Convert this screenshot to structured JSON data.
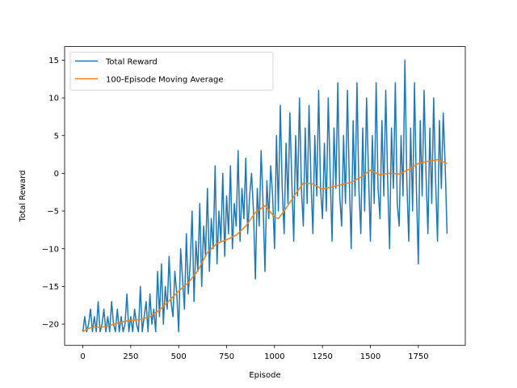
{
  "chart_data": {
    "type": "line",
    "xlabel": "Episode",
    "ylabel": "Total Reward",
    "xlim": [
      -95,
      1995
    ],
    "ylim": [
      -22.8,
      16.8
    ],
    "xticks": [
      0,
      250,
      500,
      750,
      1000,
      1250,
      1500,
      1750
    ],
    "xtick_labels": [
      "0",
      "250",
      "500",
      "750",
      "1000",
      "1250",
      "1500",
      "1750"
    ],
    "yticks": [
      -20,
      -15,
      -10,
      -5,
      0,
      5,
      10,
      15
    ],
    "ytick_labels": [
      "−20",
      "−15",
      "−10",
      "−5",
      "0",
      "5",
      "10",
      "15"
    ],
    "grid": false,
    "legend_position": "upper-left",
    "series": [
      {
        "name": "Total Reward",
        "color": "#1f77b4",
        "x": [
          0,
          10,
          20,
          30,
          40,
          50,
          60,
          70,
          80,
          90,
          100,
          110,
          120,
          130,
          140,
          150,
          160,
          170,
          180,
          190,
          200,
          210,
          220,
          230,
          240,
          250,
          260,
          270,
          280,
          290,
          300,
          310,
          320,
          330,
          340,
          350,
          360,
          370,
          380,
          390,
          400,
          410,
          420,
          430,
          440,
          450,
          460,
          470,
          480,
          490,
          500,
          510,
          520,
          530,
          540,
          550,
          560,
          570,
          580,
          590,
          600,
          610,
          620,
          630,
          640,
          650,
          660,
          670,
          680,
          690,
          700,
          710,
          720,
          730,
          740,
          750,
          760,
          770,
          780,
          790,
          800,
          810,
          820,
          830,
          840,
          850,
          860,
          870,
          880,
          890,
          900,
          910,
          920,
          930,
          940,
          950,
          960,
          970,
          980,
          990,
          1000,
          1010,
          1020,
          1030,
          1040,
          1050,
          1060,
          1070,
          1080,
          1090,
          1100,
          1110,
          1120,
          1130,
          1140,
          1150,
          1160,
          1170,
          1180,
          1190,
          1200,
          1210,
          1220,
          1230,
          1240,
          1250,
          1260,
          1270,
          1280,
          1290,
          1300,
          1310,
          1320,
          1330,
          1340,
          1350,
          1360,
          1370,
          1380,
          1390,
          1400,
          1410,
          1420,
          1430,
          1440,
          1450,
          1460,
          1470,
          1480,
          1490,
          1500,
          1510,
          1520,
          1530,
          1540,
          1550,
          1560,
          1570,
          1580,
          1590,
          1600,
          1610,
          1620,
          1630,
          1640,
          1650,
          1660,
          1670,
          1680,
          1690,
          1700,
          1710,
          1720,
          1730,
          1740,
          1750,
          1760,
          1770,
          1780,
          1790,
          1800,
          1810,
          1820,
          1830,
          1840,
          1850,
          1860,
          1870,
          1880,
          1890,
          1900
        ],
        "y": [
          -21,
          -19,
          -21,
          -20,
          -18,
          -21,
          -19,
          -21,
          -17,
          -21,
          -20,
          -18,
          -21,
          -19,
          -21,
          -17,
          -20,
          -21,
          -18,
          -21,
          -19,
          -21,
          -20,
          -16,
          -21,
          -19,
          -21,
          -18,
          -20,
          -21,
          -15,
          -21,
          -19,
          -17,
          -21,
          -16,
          -20,
          -18,
          -21,
          -13,
          -19,
          -12,
          -20,
          -15,
          -18,
          -11,
          -17,
          -19,
          -13,
          -16,
          -21,
          -10,
          -14,
          -18,
          -8,
          -16,
          -12,
          -5,
          -17,
          -9,
          -13,
          -4,
          -15,
          -7,
          -11,
          -2,
          -13,
          -6,
          -10,
          1,
          -12,
          -5,
          -9,
          0,
          -11,
          -3,
          -8,
          1,
          -10,
          -4,
          -7,
          3,
          -9,
          -2,
          -6,
          2,
          -8,
          -3,
          0,
          -5,
          -14,
          -2,
          -7,
          3,
          -4,
          -13,
          -1,
          -6,
          1,
          -3,
          -10,
          5,
          -5,
          9,
          -2,
          -8,
          4,
          -4,
          8,
          -1,
          -9,
          5,
          -3,
          10,
          -2,
          -7,
          6,
          -4,
          9,
          -1,
          -8,
          5,
          -3,
          11,
          -2,
          -6,
          4,
          -5,
          10,
          0,
          -9,
          6,
          -2,
          12,
          -3,
          -7,
          5,
          -4,
          11,
          -1,
          -10,
          7,
          -3,
          12,
          -2,
          -8,
          6,
          -5,
          10,
          0,
          -9,
          5,
          -4,
          12,
          -2,
          -6,
          7,
          -3,
          11,
          -1,
          -10,
          6,
          -2,
          12,
          -4,
          -7,
          5,
          -3,
          15,
          -1,
          -9,
          6,
          -5,
          12,
          -2,
          -12,
          7,
          -3,
          11,
          0,
          -8,
          6,
          -4,
          10,
          -1,
          -9,
          7,
          -2,
          8,
          1,
          -8
        ]
      },
      {
        "name": "100-Episode Moving Average",
        "color": "#ff7f0e",
        "x": [
          0,
          25,
          50,
          100,
          150,
          200,
          250,
          300,
          350,
          400,
          450,
          500,
          550,
          600,
          650,
          700,
          750,
          800,
          850,
          900,
          950,
          1000,
          1020,
          1050,
          1100,
          1150,
          1200,
          1250,
          1300,
          1350,
          1400,
          1450,
          1500,
          1550,
          1600,
          1650,
          1700,
          1750,
          1800,
          1850,
          1900
        ],
        "y": [
          -21,
          -20.6,
          -20.4,
          -20.4,
          -20.1,
          -19.7,
          -19.5,
          -19.4,
          -19.0,
          -18.1,
          -16.9,
          -15.6,
          -14.5,
          -12.9,
          -10.5,
          -9.3,
          -8.8,
          -8.2,
          -7.0,
          -5.2,
          -4.3,
          -5.8,
          -6.0,
          -5.0,
          -3.1,
          -1.3,
          -1.4,
          -2.1,
          -1.8,
          -1.5,
          -1.2,
          -0.5,
          0.4,
          -0.2,
          0.0,
          -0.1,
          0.5,
          1.3,
          1.6,
          1.8,
          1.3
        ]
      }
    ]
  }
}
